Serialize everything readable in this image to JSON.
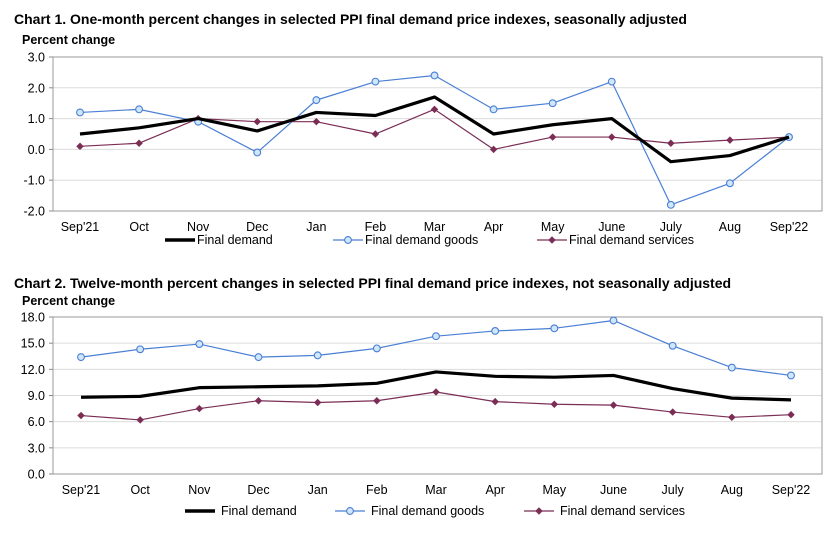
{
  "chart_data": [
    {
      "type": "line",
      "title": "Chart 1. One-month percent changes in selected PPI final demand price indexes, seasonally adjusted",
      "ylabel": "Percent change",
      "xlabel": "",
      "categories": [
        "Sep'21",
        "Oct",
        "Nov",
        "Dec",
        "Jan",
        "Feb",
        "Mar",
        "Apr",
        "May",
        "June",
        "July",
        "Aug",
        "Sep'22"
      ],
      "ylim": [
        -2.0,
        3.0
      ],
      "yticks": [
        "-2.0",
        "-1.0",
        "0.0",
        "1.0",
        "2.0",
        "3.0"
      ],
      "grid": true,
      "legend": "bottom",
      "series": [
        {
          "name": "Final demand",
          "color": "#000000",
          "marker": "none",
          "values": [
            0.5,
            0.7,
            1.0,
            0.6,
            1.2,
            1.1,
            1.7,
            0.5,
            0.8,
            1.0,
            -0.4,
            -0.2,
            0.4
          ]
        },
        {
          "name": "Final demand goods",
          "color": "#4a7fd4",
          "marker": "circle",
          "values": [
            1.2,
            1.3,
            0.9,
            -0.1,
            1.6,
            2.2,
            2.4,
            1.3,
            1.5,
            2.2,
            -1.8,
            -1.1,
            0.4
          ]
        },
        {
          "name": "Final demand services",
          "color": "#7b2d55",
          "marker": "diamond",
          "values": [
            0.1,
            0.2,
            1.0,
            0.9,
            0.9,
            0.5,
            1.3,
            0.0,
            0.4,
            0.4,
            0.2,
            0.3,
            0.4
          ]
        }
      ]
    },
    {
      "type": "line",
      "title": "Chart 2. Twelve-month percent changes in selected PPI final demand price indexes, not seasonally adjusted",
      "ylabel": "Percent change",
      "xlabel": "",
      "categories": [
        "Sep'21",
        "Oct",
        "Nov",
        "Dec",
        "Jan",
        "Feb",
        "Mar",
        "Apr",
        "May",
        "June",
        "July",
        "Aug",
        "Sep'22"
      ],
      "ylim": [
        0.0,
        18.0
      ],
      "yticks": [
        "0.0",
        "3.0",
        "6.0",
        "9.0",
        "12.0",
        "15.0",
        "18.0"
      ],
      "grid": true,
      "legend": "bottom",
      "series": [
        {
          "name": "Final demand",
          "color": "#000000",
          "marker": "none",
          "values": [
            8.8,
            8.9,
            9.9,
            10.0,
            10.1,
            10.4,
            11.7,
            11.2,
            11.1,
            11.3,
            9.8,
            8.7,
            8.5
          ]
        },
        {
          "name": "Final demand goods",
          "color": "#4a7fd4",
          "marker": "circle",
          "values": [
            13.4,
            14.3,
            14.9,
            13.4,
            13.6,
            14.4,
            15.8,
            16.4,
            16.7,
            17.6,
            14.7,
            12.2,
            11.3
          ]
        },
        {
          "name": "Final demand services",
          "color": "#7b2d55",
          "marker": "diamond",
          "values": [
            6.7,
            6.2,
            7.5,
            8.4,
            8.2,
            8.4,
            9.4,
            8.3,
            8.0,
            7.9,
            7.1,
            6.5,
            6.8
          ]
        }
      ]
    }
  ]
}
